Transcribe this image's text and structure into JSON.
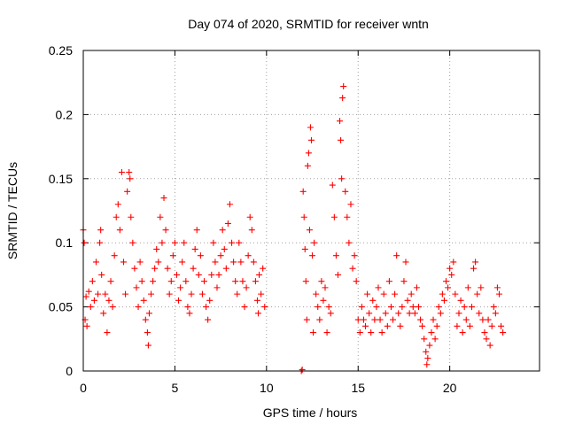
{
  "chart_data": {
    "type": "scatter",
    "title": "Day 074 of 2020, SRMTID for receiver wntn",
    "xlabel": "GPS time / hours",
    "ylabel": "SRMTID / TECUs",
    "xlim": [
      0,
      24.9
    ],
    "ylim": [
      0,
      0.25
    ],
    "xticks": [
      0,
      5,
      10,
      15,
      20
    ],
    "xtick_labels": [
      "0",
      "5",
      "10",
      "15",
      "20"
    ],
    "yticks": [
      0,
      0.05,
      0.1,
      0.15,
      0.2,
      0.25
    ],
    "ytick_labels": [
      "0",
      "0.05",
      "0.1",
      "0.15",
      "0.2",
      "0.25"
    ],
    "grid": true,
    "marker": "+",
    "series": [
      {
        "name": "SRMTID",
        "color": "#ff0000",
        "points": [
          [
            0.0,
            0.11
          ],
          [
            0.05,
            0.1
          ],
          [
            0.1,
            0.04
          ],
          [
            0.15,
            0.058
          ],
          [
            0.2,
            0.035
          ],
          [
            0.3,
            0.062
          ],
          [
            0.4,
            0.05
          ],
          [
            0.5,
            0.07
          ],
          [
            0.6,
            0.055
          ],
          [
            0.7,
            0.085
          ],
          [
            0.8,
            0.06
          ],
          [
            0.9,
            0.1
          ],
          [
            0.95,
            0.11
          ],
          [
            1.0,
            0.075
          ],
          [
            1.1,
            0.045
          ],
          [
            1.2,
            0.06
          ],
          [
            1.3,
            0.03
          ],
          [
            1.4,
            0.055
          ],
          [
            1.5,
            0.07
          ],
          [
            1.6,
            0.05
          ],
          [
            1.7,
            0.09
          ],
          [
            1.8,
            0.12
          ],
          [
            1.9,
            0.13
          ],
          [
            2.0,
            0.11
          ],
          [
            2.1,
            0.155
          ],
          [
            2.2,
            0.085
          ],
          [
            2.3,
            0.06
          ],
          [
            2.4,
            0.14
          ],
          [
            2.5,
            0.155
          ],
          [
            2.55,
            0.15
          ],
          [
            2.6,
            0.12
          ],
          [
            2.7,
            0.1
          ],
          [
            2.8,
            0.08
          ],
          [
            2.9,
            0.065
          ],
          [
            3.0,
            0.05
          ],
          [
            3.1,
            0.085
          ],
          [
            3.2,
            0.07
          ],
          [
            3.3,
            0.055
          ],
          [
            3.4,
            0.04
          ],
          [
            3.5,
            0.03
          ],
          [
            3.55,
            0.02
          ],
          [
            3.6,
            0.045
          ],
          [
            3.7,
            0.06
          ],
          [
            3.8,
            0.07
          ],
          [
            3.9,
            0.08
          ],
          [
            4.0,
            0.095
          ],
          [
            4.1,
            0.085
          ],
          [
            4.2,
            0.12
          ],
          [
            4.3,
            0.1
          ],
          [
            4.4,
            0.135
          ],
          [
            4.5,
            0.11
          ],
          [
            4.6,
            0.08
          ],
          [
            4.7,
            0.06
          ],
          [
            4.8,
            0.07
          ],
          [
            4.9,
            0.09
          ],
          [
            5.0,
            0.1
          ],
          [
            5.1,
            0.075
          ],
          [
            5.2,
            0.055
          ],
          [
            5.3,
            0.065
          ],
          [
            5.4,
            0.085
          ],
          [
            5.5,
            0.1
          ],
          [
            5.6,
            0.07
          ],
          [
            5.7,
            0.05
          ],
          [
            5.8,
            0.045
          ],
          [
            5.9,
            0.06
          ],
          [
            6.0,
            0.08
          ],
          [
            6.1,
            0.095
          ],
          [
            6.2,
            0.11
          ],
          [
            6.3,
            0.075
          ],
          [
            6.4,
            0.09
          ],
          [
            6.5,
            0.06
          ],
          [
            6.6,
            0.07
          ],
          [
            6.7,
            0.05
          ],
          [
            6.8,
            0.04
          ],
          [
            6.9,
            0.055
          ],
          [
            7.0,
            0.075
          ],
          [
            7.1,
            0.1
          ],
          [
            7.2,
            0.085
          ],
          [
            7.3,
            0.065
          ],
          [
            7.4,
            0.075
          ],
          [
            7.5,
            0.09
          ],
          [
            7.6,
            0.11
          ],
          [
            7.7,
            0.095
          ],
          [
            7.8,
            0.08
          ],
          [
            7.9,
            0.115
          ],
          [
            8.0,
            0.13
          ],
          [
            8.1,
            0.1
          ],
          [
            8.2,
            0.085
          ],
          [
            8.3,
            0.07
          ],
          [
            8.4,
            0.06
          ],
          [
            8.5,
            0.1
          ],
          [
            8.6,
            0.085
          ],
          [
            8.7,
            0.07
          ],
          [
            8.8,
            0.05
          ],
          [
            8.9,
            0.065
          ],
          [
            9.0,
            0.09
          ],
          [
            9.1,
            0.12
          ],
          [
            9.2,
            0.11
          ],
          [
            9.3,
            0.085
          ],
          [
            9.4,
            0.07
          ],
          [
            9.5,
            0.055
          ],
          [
            9.55,
            0.045
          ],
          [
            9.6,
            0.075
          ],
          [
            9.7,
            0.06
          ],
          [
            9.8,
            0.08
          ],
          [
            9.9,
            0.05
          ],
          [
            11.9,
            0.0
          ],
          [
            11.95,
            0.001
          ],
          [
            12.0,
            0.14
          ],
          [
            12.05,
            0.12
          ],
          [
            12.1,
            0.095
          ],
          [
            12.15,
            0.07
          ],
          [
            12.2,
            0.04
          ],
          [
            12.25,
            0.16
          ],
          [
            12.3,
            0.17
          ],
          [
            12.35,
            0.11
          ],
          [
            12.4,
            0.19
          ],
          [
            12.45,
            0.18
          ],
          [
            12.5,
            0.09
          ],
          [
            12.55,
            0.03
          ],
          [
            12.6,
            0.1
          ],
          [
            12.7,
            0.06
          ],
          [
            12.8,
            0.05
          ],
          [
            12.9,
            0.04
          ],
          [
            13.0,
            0.07
          ],
          [
            13.1,
            0.055
          ],
          [
            13.2,
            0.065
          ],
          [
            13.3,
            0.03
          ],
          [
            13.4,
            0.05
          ],
          [
            13.5,
            0.045
          ],
          [
            13.6,
            0.145
          ],
          [
            13.7,
            0.12
          ],
          [
            13.8,
            0.09
          ],
          [
            13.9,
            0.075
          ],
          [
            14.0,
            0.195
          ],
          [
            14.05,
            0.18
          ],
          [
            14.1,
            0.15
          ],
          [
            14.15,
            0.213
          ],
          [
            14.2,
            0.222
          ],
          [
            14.3,
            0.14
          ],
          [
            14.4,
            0.12
          ],
          [
            14.5,
            0.1
          ],
          [
            14.6,
            0.13
          ],
          [
            14.7,
            0.08
          ],
          [
            14.8,
            0.09
          ],
          [
            14.9,
            0.07
          ],
          [
            15.0,
            0.04
          ],
          [
            15.1,
            0.03
          ],
          [
            15.2,
            0.05
          ],
          [
            15.3,
            0.04
          ],
          [
            15.4,
            0.035
          ],
          [
            15.5,
            0.06
          ],
          [
            15.6,
            0.045
          ],
          [
            15.7,
            0.03
          ],
          [
            15.8,
            0.055
          ],
          [
            15.9,
            0.04
          ],
          [
            16.0,
            0.05
          ],
          [
            16.1,
            0.065
          ],
          [
            16.2,
            0.04
          ],
          [
            16.3,
            0.03
          ],
          [
            16.4,
            0.06
          ],
          [
            16.5,
            0.045
          ],
          [
            16.6,
            0.035
          ],
          [
            16.7,
            0.07
          ],
          [
            16.8,
            0.05
          ],
          [
            16.9,
            0.04
          ],
          [
            17.0,
            0.06
          ],
          [
            17.1,
            0.09
          ],
          [
            17.2,
            0.045
          ],
          [
            17.3,
            0.035
          ],
          [
            17.4,
            0.05
          ],
          [
            17.5,
            0.07
          ],
          [
            17.6,
            0.085
          ],
          [
            17.7,
            0.055
          ],
          [
            17.8,
            0.045
          ],
          [
            17.9,
            0.06
          ],
          [
            18.0,
            0.05
          ],
          [
            18.1,
            0.045
          ],
          [
            18.2,
            0.065
          ],
          [
            18.3,
            0.05
          ],
          [
            18.4,
            0.04
          ],
          [
            18.5,
            0.035
          ],
          [
            18.6,
            0.025
          ],
          [
            18.7,
            0.015
          ],
          [
            18.75,
            0.005
          ],
          [
            18.8,
            0.01
          ],
          [
            18.9,
            0.02
          ],
          [
            19.0,
            0.03
          ],
          [
            19.1,
            0.04
          ],
          [
            19.2,
            0.025
          ],
          [
            19.3,
            0.035
          ],
          [
            19.4,
            0.05
          ],
          [
            19.5,
            0.045
          ],
          [
            19.6,
            0.06
          ],
          [
            19.7,
            0.055
          ],
          [
            19.8,
            0.07
          ],
          [
            19.9,
            0.065
          ],
          [
            20.0,
            0.08
          ],
          [
            20.1,
            0.075
          ],
          [
            20.2,
            0.085
          ],
          [
            20.3,
            0.06
          ],
          [
            20.4,
            0.035
          ],
          [
            20.5,
            0.045
          ],
          [
            20.6,
            0.055
          ],
          [
            20.7,
            0.03
          ],
          [
            20.8,
            0.05
          ],
          [
            20.9,
            0.04
          ],
          [
            21.0,
            0.065
          ],
          [
            21.1,
            0.035
          ],
          [
            21.2,
            0.05
          ],
          [
            21.3,
            0.08
          ],
          [
            21.4,
            0.085
          ],
          [
            21.5,
            0.06
          ],
          [
            21.6,
            0.045
          ],
          [
            21.7,
            0.065
          ],
          [
            21.8,
            0.04
          ],
          [
            21.9,
            0.03
          ],
          [
            22.0,
            0.025
          ],
          [
            22.1,
            0.04
          ],
          [
            22.2,
            0.02
          ],
          [
            22.3,
            0.035
          ],
          [
            22.4,
            0.05
          ],
          [
            22.5,
            0.045
          ],
          [
            22.6,
            0.065
          ],
          [
            22.7,
            0.06
          ],
          [
            22.8,
            0.035
          ],
          [
            22.9,
            0.03
          ]
        ]
      }
    ]
  }
}
